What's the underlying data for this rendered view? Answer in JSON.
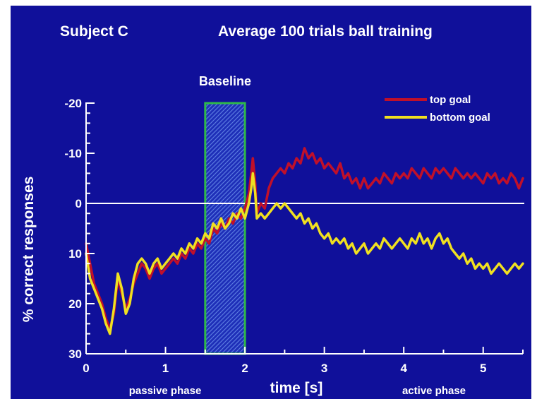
{
  "chart_data": {
    "type": "line",
    "subject_label": "Subject C",
    "title": "Average 100 trials ball training",
    "xlabel": "time [s]",
    "ylabel": "% correct responses",
    "xlim": [
      0,
      5.5
    ],
    "ylim": [
      30,
      -20
    ],
    "x_ticks": [
      "0",
      "1",
      "2",
      "3",
      "4",
      "5"
    ],
    "y_ticks": [
      "-20",
      "-10",
      "0",
      "10",
      "20",
      "30"
    ],
    "zero_line": 0,
    "baseline_region": {
      "label": "Baseline",
      "x_start": 1.5,
      "x_end": 2.0
    },
    "phase_labels": {
      "passive": "passive phase",
      "active": "active phase"
    },
    "legend_position": "top-right",
    "series": [
      {
        "name": "top goal",
        "color": "#c0102a",
        "points": [
          [
            0.0,
            8
          ],
          [
            0.05,
            12
          ],
          [
            0.1,
            16
          ],
          [
            0.15,
            18
          ],
          [
            0.2,
            20
          ],
          [
            0.25,
            23
          ],
          [
            0.3,
            25
          ],
          [
            0.35,
            22
          ],
          [
            0.4,
            15
          ],
          [
            0.45,
            18
          ],
          [
            0.5,
            21
          ],
          [
            0.55,
            19
          ],
          [
            0.6,
            16
          ],
          [
            0.65,
            14
          ],
          [
            0.7,
            12
          ],
          [
            0.75,
            13
          ],
          [
            0.8,
            15
          ],
          [
            0.85,
            13
          ],
          [
            0.9,
            12
          ],
          [
            0.95,
            14
          ],
          [
            1.0,
            13
          ],
          [
            1.05,
            12
          ],
          [
            1.1,
            11
          ],
          [
            1.15,
            12
          ],
          [
            1.2,
            10
          ],
          [
            1.25,
            11
          ],
          [
            1.3,
            9
          ],
          [
            1.35,
            10
          ],
          [
            1.4,
            8
          ],
          [
            1.45,
            9
          ],
          [
            1.5,
            7
          ],
          [
            1.55,
            8
          ],
          [
            1.6,
            5
          ],
          [
            1.65,
            6
          ],
          [
            1.7,
            4
          ],
          [
            1.75,
            5
          ],
          [
            1.8,
            3
          ],
          [
            1.85,
            4
          ],
          [
            1.9,
            2
          ],
          [
            1.95,
            3
          ],
          [
            2.0,
            1
          ],
          [
            2.05,
            -2
          ],
          [
            2.08,
            -6
          ],
          [
            2.1,
            -9
          ],
          [
            2.13,
            -4
          ],
          [
            2.15,
            2
          ],
          [
            2.2,
            0
          ],
          [
            2.25,
            1
          ],
          [
            2.3,
            -3
          ],
          [
            2.35,
            -5
          ],
          [
            2.4,
            -6
          ],
          [
            2.45,
            -7
          ],
          [
            2.5,
            -6
          ],
          [
            2.55,
            -8
          ],
          [
            2.6,
            -7
          ],
          [
            2.65,
            -9
          ],
          [
            2.7,
            -8
          ],
          [
            2.75,
            -11
          ],
          [
            2.8,
            -9
          ],
          [
            2.85,
            -10
          ],
          [
            2.9,
            -8
          ],
          [
            2.95,
            -9
          ],
          [
            3.0,
            -7
          ],
          [
            3.05,
            -8
          ],
          [
            3.1,
            -7
          ],
          [
            3.15,
            -6
          ],
          [
            3.2,
            -8
          ],
          [
            3.25,
            -5
          ],
          [
            3.3,
            -6
          ],
          [
            3.35,
            -4
          ],
          [
            3.4,
            -5
          ],
          [
            3.45,
            -3
          ],
          [
            3.5,
            -5
          ],
          [
            3.55,
            -3
          ],
          [
            3.6,
            -4
          ],
          [
            3.65,
            -5
          ],
          [
            3.7,
            -4
          ],
          [
            3.75,
            -6
          ],
          [
            3.8,
            -5
          ],
          [
            3.85,
            -4
          ],
          [
            3.9,
            -6
          ],
          [
            3.95,
            -5
          ],
          [
            4.0,
            -6
          ],
          [
            4.05,
            -5
          ],
          [
            4.1,
            -7
          ],
          [
            4.15,
            -6
          ],
          [
            4.2,
            -5
          ],
          [
            4.25,
            -7
          ],
          [
            4.3,
            -6
          ],
          [
            4.35,
            -5
          ],
          [
            4.4,
            -7
          ],
          [
            4.45,
            -6
          ],
          [
            4.5,
            -7
          ],
          [
            4.55,
            -6
          ],
          [
            4.6,
            -5
          ],
          [
            4.65,
            -7
          ],
          [
            4.7,
            -6
          ],
          [
            4.75,
            -5
          ],
          [
            4.8,
            -6
          ],
          [
            4.85,
            -5
          ],
          [
            4.9,
            -6
          ],
          [
            4.95,
            -5
          ],
          [
            5.0,
            -4
          ],
          [
            5.05,
            -6
          ],
          [
            5.1,
            -5
          ],
          [
            5.15,
            -6
          ],
          [
            5.2,
            -4
          ],
          [
            5.25,
            -5
          ],
          [
            5.3,
            -4
          ],
          [
            5.35,
            -6
          ],
          [
            5.4,
            -5
          ],
          [
            5.45,
            -3
          ],
          [
            5.5,
            -5
          ]
        ]
      },
      {
        "name": "bottom goal",
        "color": "#f0e020",
        "points": [
          [
            0.0,
            10
          ],
          [
            0.05,
            15
          ],
          [
            0.1,
            17
          ],
          [
            0.15,
            19
          ],
          [
            0.2,
            21
          ],
          [
            0.25,
            24
          ],
          [
            0.3,
            26
          ],
          [
            0.35,
            21
          ],
          [
            0.4,
            14
          ],
          [
            0.45,
            17
          ],
          [
            0.5,
            22
          ],
          [
            0.55,
            20
          ],
          [
            0.6,
            15
          ],
          [
            0.65,
            12
          ],
          [
            0.7,
            11
          ],
          [
            0.75,
            12
          ],
          [
            0.8,
            14
          ],
          [
            0.85,
            12
          ],
          [
            0.9,
            11
          ],
          [
            0.95,
            13
          ],
          [
            1.0,
            12
          ],
          [
            1.05,
            11
          ],
          [
            1.1,
            10
          ],
          [
            1.15,
            11
          ],
          [
            1.2,
            9
          ],
          [
            1.25,
            10
          ],
          [
            1.3,
            8
          ],
          [
            1.35,
            9
          ],
          [
            1.4,
            7
          ],
          [
            1.45,
            8
          ],
          [
            1.5,
            6
          ],
          [
            1.55,
            7
          ],
          [
            1.6,
            4
          ],
          [
            1.65,
            5
          ],
          [
            1.7,
            3
          ],
          [
            1.75,
            5
          ],
          [
            1.8,
            4
          ],
          [
            1.85,
            2
          ],
          [
            1.9,
            3
          ],
          [
            1.95,
            1
          ],
          [
            2.0,
            3
          ],
          [
            2.05,
            0
          ],
          [
            2.08,
            -3
          ],
          [
            2.1,
            -6
          ],
          [
            2.13,
            -2
          ],
          [
            2.15,
            3
          ],
          [
            2.2,
            2
          ],
          [
            2.25,
            3
          ],
          [
            2.3,
            2
          ],
          [
            2.35,
            1
          ],
          [
            2.4,
            0
          ],
          [
            2.45,
            1
          ],
          [
            2.5,
            0
          ],
          [
            2.55,
            1
          ],
          [
            2.6,
            2
          ],
          [
            2.65,
            3
          ],
          [
            2.7,
            2
          ],
          [
            2.75,
            4
          ],
          [
            2.8,
            3
          ],
          [
            2.85,
            5
          ],
          [
            2.9,
            4
          ],
          [
            2.95,
            6
          ],
          [
            3.0,
            7
          ],
          [
            3.05,
            6
          ],
          [
            3.1,
            8
          ],
          [
            3.15,
            7
          ],
          [
            3.2,
            8
          ],
          [
            3.25,
            7
          ],
          [
            3.3,
            9
          ],
          [
            3.35,
            8
          ],
          [
            3.4,
            10
          ],
          [
            3.45,
            9
          ],
          [
            3.5,
            8
          ],
          [
            3.55,
            10
          ],
          [
            3.6,
            9
          ],
          [
            3.65,
            8
          ],
          [
            3.7,
            9
          ],
          [
            3.75,
            7
          ],
          [
            3.8,
            8
          ],
          [
            3.85,
            9
          ],
          [
            3.9,
            8
          ],
          [
            3.95,
            7
          ],
          [
            4.0,
            8
          ],
          [
            4.05,
            9
          ],
          [
            4.1,
            7
          ],
          [
            4.15,
            8
          ],
          [
            4.2,
            6
          ],
          [
            4.25,
            8
          ],
          [
            4.3,
            7
          ],
          [
            4.35,
            9
          ],
          [
            4.4,
            7
          ],
          [
            4.45,
            6
          ],
          [
            4.5,
            8
          ],
          [
            4.55,
            7
          ],
          [
            4.6,
            9
          ],
          [
            4.65,
            10
          ],
          [
            4.7,
            11
          ],
          [
            4.75,
            10
          ],
          [
            4.8,
            12
          ],
          [
            4.85,
            11
          ],
          [
            4.9,
            13
          ],
          [
            4.95,
            12
          ],
          [
            5.0,
            13
          ],
          [
            5.05,
            12
          ],
          [
            5.1,
            14
          ],
          [
            5.15,
            13
          ],
          [
            5.2,
            12
          ],
          [
            5.25,
            13
          ],
          [
            5.3,
            14
          ],
          [
            5.35,
            13
          ],
          [
            5.4,
            12
          ],
          [
            5.45,
            13
          ],
          [
            5.5,
            12
          ]
        ]
      }
    ]
  }
}
